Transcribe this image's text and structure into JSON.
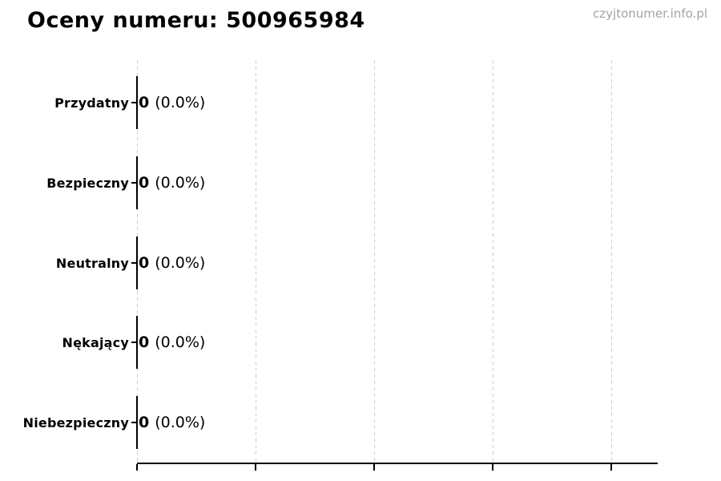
{
  "chart_data": {
    "type": "bar",
    "orientation": "horizontal",
    "title": "Oceny numeru: 500965984",
    "watermark": "czyjtonumer.info.pl",
    "categories": [
      "Przydatny",
      "Bezpieczny",
      "Neutralny",
      "Nękający",
      "Niebezpieczny"
    ],
    "values": [
      0,
      0,
      0,
      0,
      0
    ],
    "percent_labels": [
      "(0.0%)",
      "(0.0%)",
      "(0.0%)",
      "(0.0%)",
      "(0.0%)"
    ],
    "bar_value_label_format": "count (percent)",
    "xlabel": "",
    "ylabel": "",
    "xlim_min": 0,
    "grid": true,
    "grid_style": "vertical-dashed",
    "x_tick_count": 5,
    "x_tick_labels_visible": false,
    "legend": false,
    "colors": {
      "background": "#ffffff",
      "title": "#000000",
      "category_label": "#000000",
      "value_label": "#000000",
      "watermark": "#a3a3a3",
      "gridline": "#cccccc",
      "axis": "#000000",
      "bar_edge": "#000000"
    }
  }
}
